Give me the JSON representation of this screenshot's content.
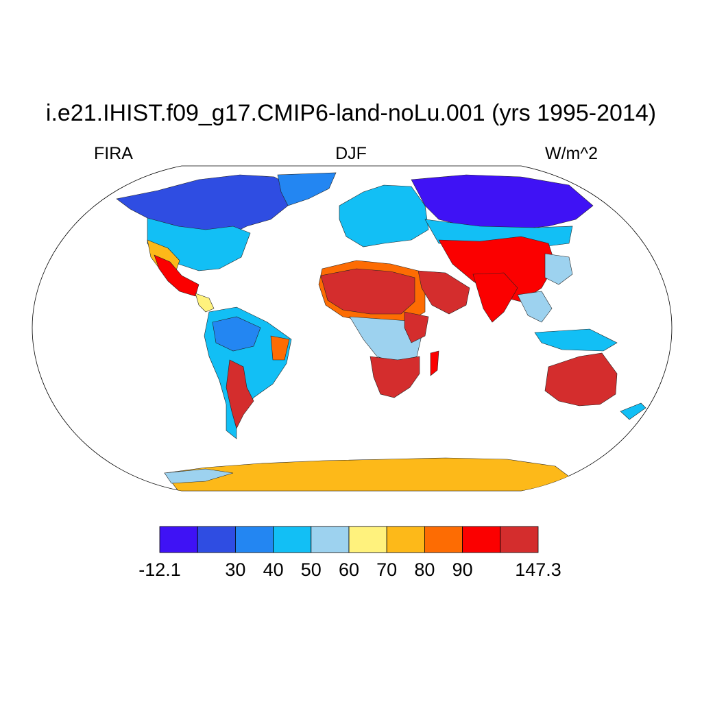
{
  "title": "i.e21.IHIST.f09_g17.CMIP6-land-noLu.001 (yrs 1995-2014)",
  "left_label": "FIRA",
  "center_label": "DJF",
  "right_label": "W/m^2",
  "map": {
    "projection": "robinson",
    "ocean_color": "#ffffff",
    "coastline_color": "#000000",
    "regions": [
      {
        "name": "sahara",
        "level": 9
      },
      {
        "name": "arabian-peninsula",
        "level": 9
      },
      {
        "name": "india",
        "level": 8
      },
      {
        "name": "southern-africa",
        "level": 9
      },
      {
        "name": "australia",
        "level": 9
      },
      {
        "name": "mexico",
        "level": 8
      },
      {
        "name": "patagonia",
        "level": 9
      },
      {
        "name": "tibetan-plateau",
        "level": 8
      },
      {
        "name": "amazon",
        "level": 2
      },
      {
        "name": "central-africa",
        "level": 3
      },
      {
        "name": "siberia",
        "level": 0
      },
      {
        "name": "canada",
        "level": 1
      },
      {
        "name": "antarctica",
        "level": 6
      }
    ]
  },
  "colorbar": {
    "colors": [
      "#3f12f5",
      "#2f4de2",
      "#2386f2",
      "#12bff5",
      "#9dd2ef",
      "#fff27d",
      "#fdb919",
      "#fd6c03",
      "#fb0000",
      "#d42d2d"
    ],
    "labels": [
      {
        "text": "-12.1",
        "index": 0
      },
      {
        "text": "30",
        "index": 2
      },
      {
        "text": "40",
        "index": 3
      },
      {
        "text": "50",
        "index": 4
      },
      {
        "text": "60",
        "index": 5
      },
      {
        "text": "70",
        "index": 6
      },
      {
        "text": "80",
        "index": 7
      },
      {
        "text": "90",
        "index": 8
      },
      {
        "text": "147.3",
        "index": 10
      }
    ]
  }
}
